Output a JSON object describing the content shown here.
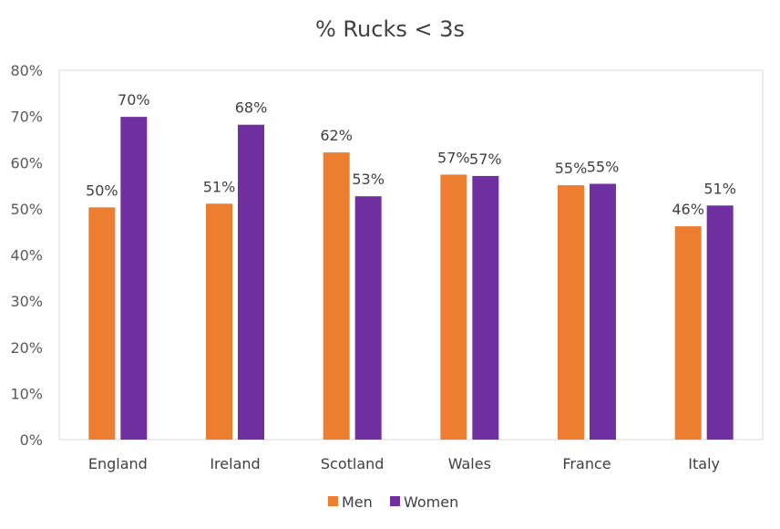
{
  "chart_data": {
    "type": "bar",
    "title": "% Rucks < 3s",
    "xlabel": "",
    "ylabel": "",
    "categories": [
      "England",
      "Ireland",
      "Scotland",
      "Wales",
      "France",
      "Italy"
    ],
    "series": [
      {
        "name": "Men",
        "color": "#ED7D31",
        "values": [
          50.3,
          51.1,
          62.2,
          57.4,
          55.1,
          46.2
        ],
        "labels": [
          "50%",
          "51%",
          "62%",
          "57%",
          "55%",
          "46%"
        ]
      },
      {
        "name": "Women",
        "color": "#7030A0",
        "values": [
          69.9,
          68.2,
          52.7,
          57.1,
          55.4,
          50.7
        ],
        "labels": [
          "70%",
          "68%",
          "53%",
          "57%",
          "55%",
          "51%"
        ]
      }
    ],
    "ylim": [
      0,
      80
    ],
    "yticks": [
      0,
      10,
      20,
      30,
      40,
      50,
      60,
      70,
      80
    ],
    "ytick_labels": [
      "0%",
      "10%",
      "20%",
      "30%",
      "40%",
      "50%",
      "60%",
      "70%",
      "80%"
    ],
    "grid": false,
    "legend_position": "bottom"
  }
}
